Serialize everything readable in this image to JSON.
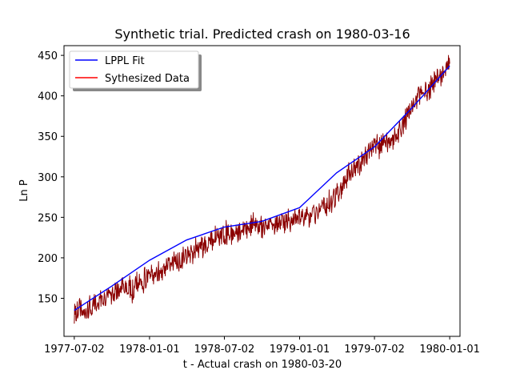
{
  "chart_data": {
    "type": "line",
    "title": "Synthetic trial. Predicted crash on 1980-03-16",
    "xlabel": "t - Actual crash on 1980-03-20",
    "ylabel": "Ln P",
    "x_ticks": [
      "1977-07-02",
      "1978-01-01",
      "1978-07-02",
      "1979-01-01",
      "1979-07-02",
      "1980-01-01"
    ],
    "y_ticks": [
      150,
      200,
      250,
      300,
      350,
      400,
      450
    ],
    "xlim": [
      "1977-06-07",
      "1980-01-26"
    ],
    "ylim": [
      103,
      462
    ],
    "grid": false,
    "legend_position": "upper-left",
    "series": [
      {
        "name": "LPPL Fit",
        "color": "#0000ff",
        "x": [
          "1977-07-02",
          "1977-10-01",
          "1978-01-01",
          "1978-04-01",
          "1978-07-02",
          "1978-10-01",
          "1979-01-01",
          "1979-04-01",
          "1979-07-02",
          "1979-10-01",
          "1980-01-01"
        ],
        "y": [
          135,
          165,
          197,
          222,
          238,
          245,
          262,
          305,
          337,
          385,
          437
        ]
      },
      {
        "name": "Sythesized Data",
        "color": "#8b0000",
        "legend_color": "#ff0000",
        "x_start": "1977-07-02",
        "x_end": "1980-01-01",
        "y": [
          128,
          140,
          132,
          138,
          141,
          148,
          152,
          150,
          158,
          162,
          165,
          160,
          168,
          172,
          175,
          178,
          182,
          188,
          192,
          195,
          198,
          200,
          206,
          212,
          215,
          218,
          222,
          226,
          229,
          230,
          232,
          235,
          236,
          238,
          240,
          238,
          241,
          240,
          242,
          244,
          245,
          246,
          247,
          249,
          250,
          253,
          258,
          262,
          266,
          272,
          280,
          292,
          303,
          310,
          318,
          326,
          332,
          336,
          338,
          340,
          342,
          352,
          362,
          375,
          388,
          398,
          404,
          410,
          416,
          424,
          432,
          440
        ]
      }
    ]
  }
}
